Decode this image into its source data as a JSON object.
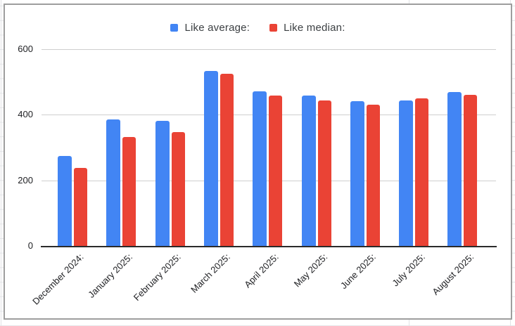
{
  "chart_data": {
    "type": "bar",
    "title": "",
    "categories": [
      "December 2024:",
      "January 2025:",
      "February 2025:",
      "March 2025:",
      "April 2025:",
      "May 2025:",
      "June 2025:",
      "July 2025:",
      "August 2025:"
    ],
    "series": [
      {
        "name": "Like average:",
        "color": "#4285F4",
        "values": [
          275,
          386,
          382,
          533,
          471,
          458,
          442,
          444,
          469
        ]
      },
      {
        "name": "Like median:",
        "color": "#EA4335",
        "values": [
          238,
          332,
          347,
          524,
          458,
          444,
          430,
          450,
          461
        ]
      }
    ],
    "y_ticks": [
      0,
      200,
      400,
      600
    ],
    "ylim": [
      0,
      600
    ],
    "grid": true,
    "legend_position": "top",
    "x_label_rotation": -45,
    "xlabel": "",
    "ylabel": ""
  },
  "colors": {
    "series_blue": "#4285F4",
    "series_red": "#EA4335",
    "plot_gridline": "#cfcfcf",
    "axis_line": "#2b2b2b",
    "chart_border": "#9e9e9e",
    "sheet_gridline": "#e2e3e6",
    "label_text": "#202124"
  }
}
